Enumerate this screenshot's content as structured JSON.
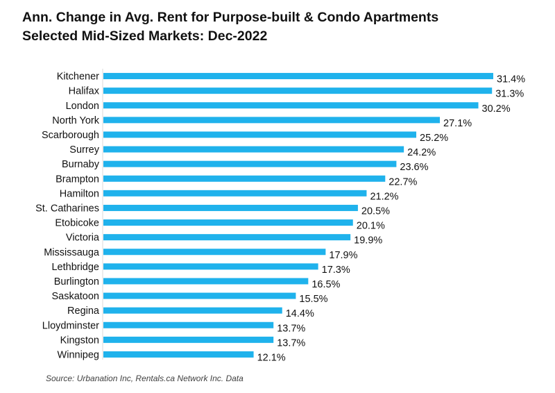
{
  "chart_data": {
    "type": "bar",
    "orientation": "horizontal",
    "title": "Ann. Change in Avg. Rent for Purpose-built & Condo Apartments",
    "subtitle": "Selected Mid-Sized Markets: Dec-2022",
    "categories": [
      "Kitchener",
      "Halifax",
      "London",
      "North York",
      "Scarborough",
      "Surrey",
      "Burnaby",
      "Brampton",
      "Hamilton",
      "St. Catharines",
      "Etobicoke",
      "Victoria",
      "Mississauga",
      "Lethbridge",
      "Burlington",
      "Saskatoon",
      "Regina",
      "Lloydminster",
      "Kingston",
      "Winnipeg"
    ],
    "values": [
      31.4,
      31.3,
      30.2,
      27.1,
      25.2,
      24.2,
      23.6,
      22.7,
      21.2,
      20.5,
      20.1,
      19.9,
      17.9,
      17.3,
      16.5,
      15.5,
      14.4,
      13.7,
      13.7,
      12.1
    ],
    "value_labels": [
      "31.4%",
      "31.3%",
      "30.2%",
      "27.1%",
      "25.2%",
      "24.2%",
      "23.6%",
      "22.7%",
      "21.2%",
      "20.5%",
      "20.1%",
      "19.9%",
      "17.9%",
      "17.3%",
      "16.5%",
      "15.5%",
      "14.4%",
      "13.7%",
      "13.7%",
      "12.1%"
    ],
    "unit": "%",
    "xlim": [
      0,
      31.4
    ],
    "grid": false,
    "legend": "none",
    "bar_color": "#1FB2EC",
    "source": "Source: Urbanation Inc, Rentals.ca Network Inc. Data"
  }
}
